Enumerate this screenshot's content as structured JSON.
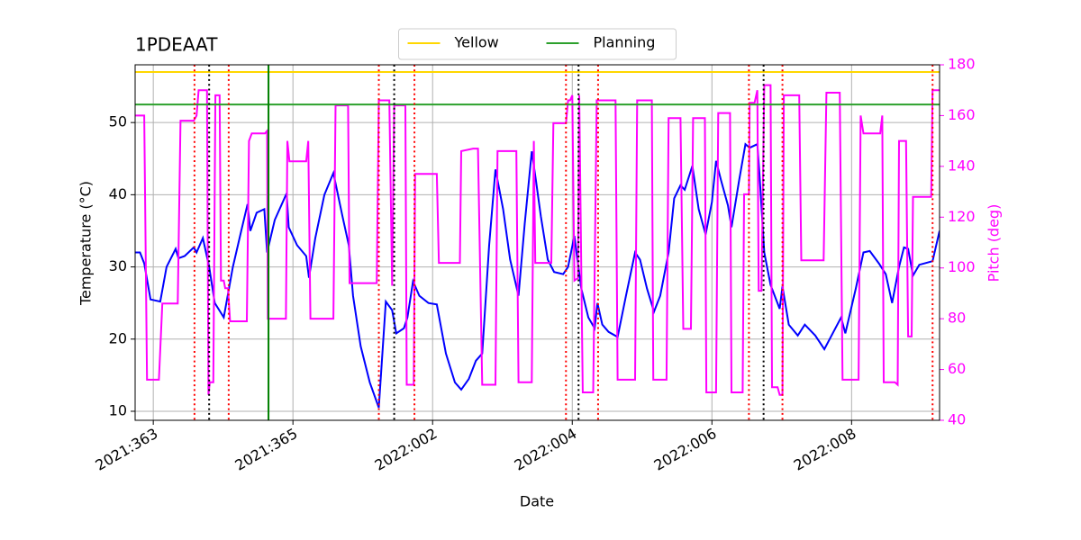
{
  "chart_data": {
    "type": "line",
    "title": "1PDEAAT",
    "xlabel": "Date",
    "ylabel": "Temperature (°C)",
    "y2label": "Pitch (deg)",
    "y2color": "#ff00ff",
    "grid": true,
    "legend": "top",
    "xlim": [
      362.74,
      374.26
    ],
    "xticks": [
      {
        "value": 363,
        "label": "2021:363"
      },
      {
        "value": 365,
        "label": "2021:365"
      },
      {
        "value": 367,
        "label": "2022:002"
      },
      {
        "value": 369,
        "label": "2022:004"
      },
      {
        "value": 371,
        "label": "2022:006"
      },
      {
        "value": 373,
        "label": "2022:008"
      }
    ],
    "ylim": [
      8.75,
      58
    ],
    "yticks": [
      10,
      20,
      30,
      40,
      50
    ],
    "y2lim": [
      40,
      180
    ],
    "y2ticks": [
      40,
      60,
      80,
      100,
      120,
      140,
      160,
      180
    ],
    "hlines": [
      {
        "name": "Yellow",
        "color": "#ffd700",
        "y": 57
      },
      {
        "name": "Planning",
        "color": "#2ca02c",
        "y": 52.5
      }
    ],
    "vlines": [
      {
        "x": 364.65,
        "color": "#008000",
        "style": "solid"
      },
      {
        "x": 363.8,
        "color": "#000000",
        "style": "dotted"
      },
      {
        "x": 366.45,
        "color": "#000000",
        "style": "dotted"
      },
      {
        "x": 369.09,
        "color": "#000000",
        "style": "dotted"
      },
      {
        "x": 371.74,
        "color": "#000000",
        "style": "dotted"
      },
      {
        "x": 363.59,
        "color": "#ff0000",
        "style": "dotted"
      },
      {
        "x": 364.08,
        "color": "#ff0000",
        "style": "dotted"
      },
      {
        "x": 366.23,
        "color": "#ff0000",
        "style": "dotted"
      },
      {
        "x": 366.74,
        "color": "#ff0000",
        "style": "dotted"
      },
      {
        "x": 368.91,
        "color": "#ff0000",
        "style": "dotted"
      },
      {
        "x": 369.37,
        "color": "#ff0000",
        "style": "dotted"
      },
      {
        "x": 371.53,
        "color": "#ff0000",
        "style": "dotted"
      },
      {
        "x": 372.01,
        "color": "#ff0000",
        "style": "dotted"
      },
      {
        "x": 374.16,
        "color": "#ff0000",
        "style": "dotted"
      }
    ],
    "series": [
      {
        "color": "#0000ff",
        "axis": "y",
        "x": [
          362.74,
          362.81,
          362.87,
          362.96,
          363.1,
          363.19,
          363.32,
          363.36,
          363.45,
          363.58,
          363.62,
          363.71,
          363.8,
          363.88,
          364.01,
          364.14,
          364.26,
          364.35,
          364.39,
          364.48,
          364.59,
          364.63,
          364.74,
          364.91,
          364.94,
          365.06,
          365.19,
          365.23,
          365.32,
          365.45,
          365.58,
          365.71,
          365.8,
          365.86,
          365.97,
          366.1,
          366.23,
          366.33,
          366.42,
          366.48,
          366.59,
          366.64,
          366.72,
          366.81,
          366.94,
          367.06,
          367.19,
          367.32,
          367.41,
          367.52,
          367.62,
          367.71,
          367.81,
          367.9,
          368.01,
          368.11,
          368.23,
          368.32,
          368.42,
          368.48,
          368.55,
          368.65,
          368.74,
          368.87,
          368.94,
          369.03,
          369.06,
          369.13,
          369.23,
          369.32,
          369.36,
          369.43,
          369.52,
          369.65,
          369.77,
          369.9,
          369.97,
          370.07,
          370.17,
          370.26,
          370.38,
          370.46,
          370.55,
          370.61,
          370.72,
          370.81,
          370.91,
          371.0,
          371.06,
          371.13,
          371.23,
          371.28,
          371.39,
          371.48,
          371.54,
          371.65,
          371.68,
          371.75,
          371.84,
          371.97,
          372.01,
          372.1,
          372.23,
          372.33,
          372.48,
          372.61,
          372.74,
          372.85,
          372.91,
          373.06,
          373.17,
          373.26,
          373.39,
          373.49,
          373.58,
          373.68,
          373.75,
          373.81,
          373.88,
          373.97,
          374.16,
          374.26
        ],
        "values": [
          32,
          32,
          30.5,
          25.5,
          25.2,
          30,
          32.5,
          31.2,
          31.5,
          32.7,
          32,
          34,
          30,
          25,
          23,
          30,
          35,
          38.7,
          35,
          37.5,
          38,
          32,
          36.5,
          40.2,
          35.5,
          33,
          31.5,
          28.5,
          34,
          40,
          43,
          37,
          33,
          26,
          19,
          14,
          10.5,
          25.2,
          24,
          20.8,
          21.5,
          23,
          28,
          26,
          25,
          24.8,
          18,
          14,
          13,
          14.5,
          17,
          18,
          33,
          43.5,
          38,
          31,
          26,
          36,
          46,
          42,
          37,
          31,
          29.3,
          29,
          30,
          34.3,
          32,
          27,
          23,
          21.5,
          25,
          22,
          21,
          20.3,
          26,
          32,
          31,
          27,
          23.8,
          26,
          32,
          39.5,
          41.3,
          40.7,
          44,
          38,
          34.5,
          39,
          44.7,
          42,
          38.5,
          35.5,
          42,
          47,
          46.5,
          47,
          43,
          32,
          27.5,
          24.2,
          27.3,
          22,
          20.5,
          22,
          20.5,
          18.6,
          21,
          23,
          20.8,
          27,
          32,
          32.2,
          30.5,
          29,
          25,
          30,
          32.7,
          32.5,
          28.8,
          30.3,
          30.8,
          35
        ]
      },
      {
        "color": "#ff00ff",
        "axis": "y2",
        "x": [
          362.74,
          362.87,
          362.91,
          363.08,
          363.13,
          363.35,
          363.39,
          363.58,
          363.62,
          363.65,
          363.77,
          363.79,
          363.81,
          363.86,
          363.89,
          363.95,
          363.97,
          364.01,
          364.03,
          364.07,
          364.1,
          364.34,
          364.37,
          364.41,
          364.6,
          364.63,
          364.64,
          364.9,
          364.92,
          364.95,
          365.19,
          365.22,
          365.25,
          365.58,
          365.61,
          365.79,
          365.81,
          366.2,
          366.23,
          366.38,
          366.42,
          366.45,
          366.61,
          366.63,
          366.73,
          366.75,
          367.06,
          367.09,
          367.39,
          367.41,
          367.58,
          367.65,
          367.71,
          367.9,
          367.93,
          368.2,
          368.23,
          368.42,
          368.45,
          368.47,
          368.7,
          368.73,
          368.91,
          368.94,
          368.97,
          369.0,
          369.03,
          369.08,
          369.1,
          369.15,
          369.3,
          369.35,
          369.62,
          369.65,
          369.9,
          369.93,
          370.14,
          370.16,
          370.35,
          370.38,
          370.55,
          370.59,
          370.7,
          370.73,
          370.9,
          370.92,
          371.06,
          371.09,
          371.26,
          371.28,
          371.44,
          371.46,
          371.53,
          371.54,
          371.61,
          371.65,
          371.67,
          371.71,
          371.75,
          371.84,
          371.86,
          371.94,
          371.97,
          372.01,
          372.03,
          372.25,
          372.28,
          372.6,
          372.64,
          372.83,
          372.87,
          373.1,
          373.13,
          373.17,
          373.41,
          373.44,
          373.46,
          373.62,
          373.66,
          373.68,
          373.78,
          373.81,
          373.86,
          373.88,
          374.14,
          374.16,
          374.26
        ],
        "values": [
          160,
          160,
          56,
          56,
          86,
          86,
          158,
          158,
          160,
          170,
          170,
          50,
          55,
          55,
          168,
          168,
          95,
          95,
          92,
          92,
          79,
          79,
          150,
          153,
          153,
          154,
          80,
          80,
          150,
          142,
          142,
          150,
          80,
          80,
          164,
          164,
          94,
          94,
          166,
          166,
          93,
          164,
          164,
          54,
          54,
          137,
          137,
          102,
          102,
          146,
          147,
          147,
          54,
          54,
          146,
          146,
          55,
          55,
          150,
          102,
          102,
          157,
          157,
          166,
          166,
          168,
          95,
          96,
          168,
          51,
          51,
          166,
          166,
          56,
          56,
          166,
          166,
          56,
          56,
          159,
          159,
          76,
          76,
          159,
          159,
          51,
          51,
          161,
          161,
          51,
          51,
          129,
          129,
          165,
          165,
          170,
          91,
          91,
          172,
          172,
          53,
          53,
          50,
          50,
          168,
          168,
          103,
          103,
          169,
          169,
          56,
          56,
          160,
          153,
          153,
          160,
          55,
          55,
          54,
          150,
          150,
          73,
          73,
          128,
          128,
          170,
          170
        ]
      }
    ]
  }
}
